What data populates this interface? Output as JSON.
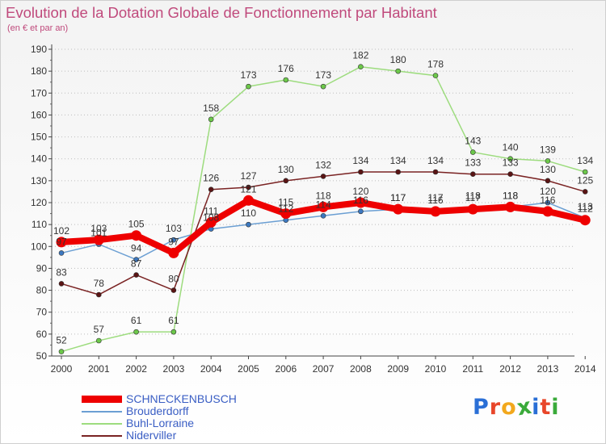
{
  "chart_data": {
    "type": "line",
    "title": "Evolution de la Dotation Globale de Fonctionnement par Habitant",
    "subtitle": "(en € et par an)",
    "xlabel": "",
    "ylabel": "",
    "x": [
      "2000",
      "2001",
      "2002",
      "2003",
      "2004",
      "2005",
      "2006",
      "2007",
      "2008",
      "2009",
      "2010",
      "2011",
      "2012",
      "2013",
      "2014"
    ],
    "ylim": [
      50,
      190
    ],
    "yticks": [
      "50",
      "60",
      "70",
      "80",
      "90",
      "100",
      "110",
      "120",
      "130",
      "140",
      "150",
      "160",
      "170",
      "180",
      "190"
    ],
    "grid": "horizontal dotted",
    "legend_position": "bottom-left",
    "series": [
      {
        "name": "Brouderdorff",
        "color": "#6b9fd3",
        "marker_color": "#3c78c0",
        "values": [
          97,
          101,
          94,
          103,
          108,
          110,
          112,
          114,
          116,
          117,
          117,
          118,
          118,
          120,
          113
        ],
        "labels": [
          "97",
          "101",
          "94",
          "103",
          "108",
          "110",
          "112",
          "114",
          "116",
          "117",
          "117",
          "118",
          "118",
          "120",
          "113"
        ]
      },
      {
        "name": "Buhl-Lorraine",
        "color": "#9ddc7e",
        "marker_color": "#6cc84a",
        "values": [
          52,
          57,
          61,
          61,
          158,
          173,
          176,
          173,
          182,
          180,
          178,
          143,
          140,
          139,
          134
        ],
        "labels": [
          "52",
          "57",
          "61",
          "61",
          "158",
          "173",
          "176",
          "173",
          "182",
          "180",
          "178",
          "143",
          "140",
          "139",
          "134"
        ]
      },
      {
        "name": "Niderviller",
        "color": "#7a2323",
        "marker_color": "#5a1414",
        "values": [
          83,
          78,
          87,
          80,
          126,
          127,
          130,
          132,
          134,
          134,
          134,
          133,
          133,
          130,
          125
        ],
        "labels": [
          "83",
          "78",
          "87",
          "80",
          "126",
          "127",
          "130",
          "132",
          "134",
          "134",
          "134",
          "133",
          "133",
          "130",
          "125"
        ]
      },
      {
        "name": "SCHNECKENBUSCH",
        "color": "#ee0000",
        "marker_color": "#ee0000",
        "values": [
          102,
          103,
          105,
          97,
          111,
          121,
          115,
          118,
          120,
          117,
          116,
          117,
          118,
          116,
          112
        ],
        "labels": [
          "102",
          "103",
          "105",
          "97",
          "111",
          "121",
          "115",
          "118",
          "120",
          "117",
          "116",
          "117",
          "118",
          "116",
          "112"
        ]
      }
    ],
    "legend": [
      {
        "name": "SCHNECKENBUSCH",
        "color": "#ee0000",
        "thick": true
      },
      {
        "name": "Brouderdorff",
        "color": "#6b9fd3",
        "thick": false
      },
      {
        "name": "Buhl-Lorraine",
        "color": "#9ddc7e",
        "thick": false
      },
      {
        "name": "Niderviller",
        "color": "#7a2323",
        "thick": false
      }
    ]
  },
  "logo": {
    "letters": [
      "P",
      "r",
      "o",
      "x",
      "i",
      "t",
      "i"
    ],
    "colors": [
      "#2a6fd6",
      "#e8462a",
      "#f2a81d",
      "#3aaa3a",
      "#2a6fd6",
      "#e8462a",
      "#3aaa3a"
    ]
  }
}
